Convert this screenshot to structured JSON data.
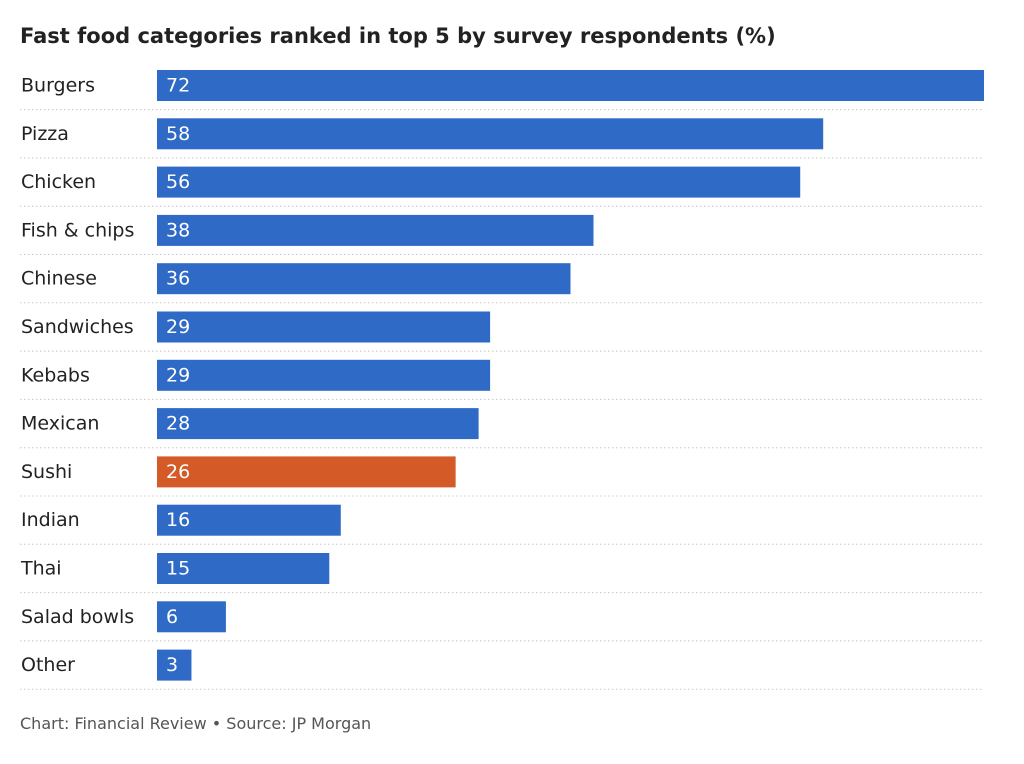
{
  "chart_data": {
    "type": "bar",
    "orientation": "horizontal",
    "title": "Fast food categories ranked in top 5 by survey respondents (%)",
    "categories": [
      "Burgers",
      "Pizza",
      "Chicken",
      "Fish & chips",
      "Chinese",
      "Sandwiches",
      "Kebabs",
      "Mexican",
      "Sushi",
      "Indian",
      "Thai",
      "Salad bowls",
      "Other"
    ],
    "values": [
      72,
      58,
      56,
      38,
      36,
      29,
      29,
      28,
      26,
      16,
      15,
      6,
      3
    ],
    "highlight": "Sushi",
    "colors": {
      "bar": "#2f6bc6",
      "highlight": "#d45a28",
      "value_text": "#ffffff",
      "divider": "#c8c8c8"
    },
    "xlim": [
      0,
      72
    ],
    "grid": false,
    "legend": "none",
    "data_labels": "inside-left"
  },
  "footer": "Chart: Financial Review • Source: JP Morgan"
}
